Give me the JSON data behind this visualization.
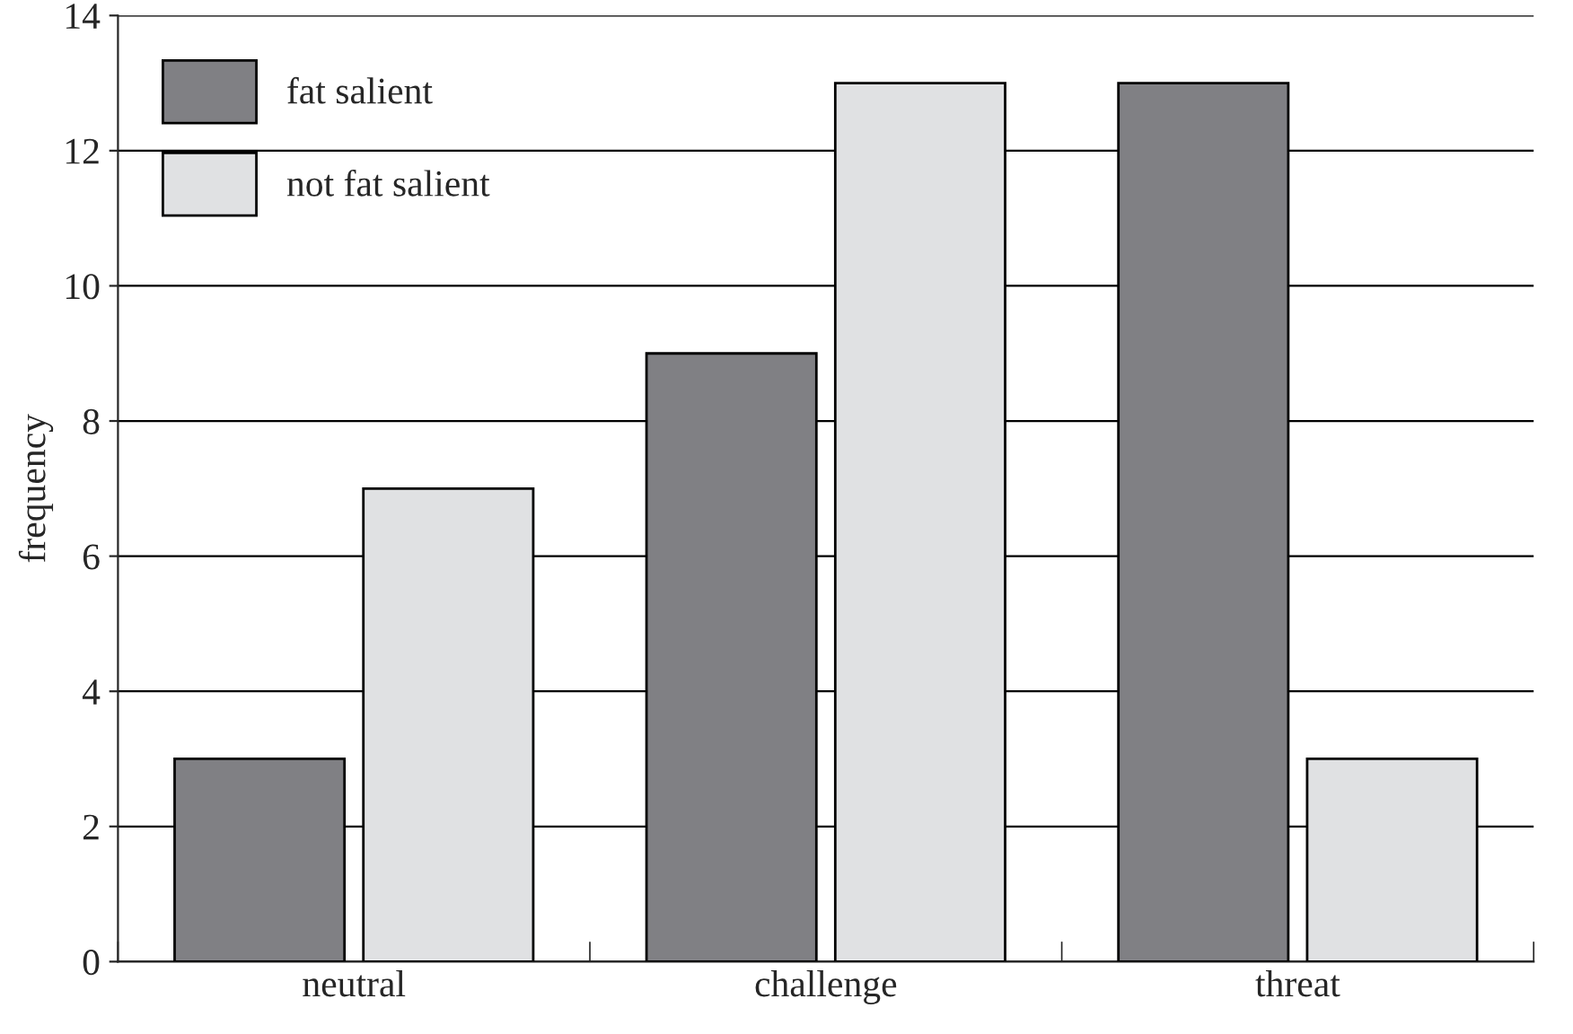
{
  "chart_data": {
    "type": "bar",
    "ylabel": "frequency",
    "categories": [
      "neutral",
      "challenge",
      "threat"
    ],
    "series": [
      {
        "name": "fat salient",
        "color": "#808084",
        "values": [
          3,
          9,
          13
        ]
      },
      {
        "name": "not fat salient",
        "color": "#e0e1e3",
        "values": [
          7,
          13,
          3
        ]
      }
    ],
    "ylim": [
      0,
      14
    ],
    "yticks": [
      0,
      2,
      4,
      6,
      8,
      10,
      12,
      14
    ],
    "grid": "y",
    "legend": "top left"
  }
}
